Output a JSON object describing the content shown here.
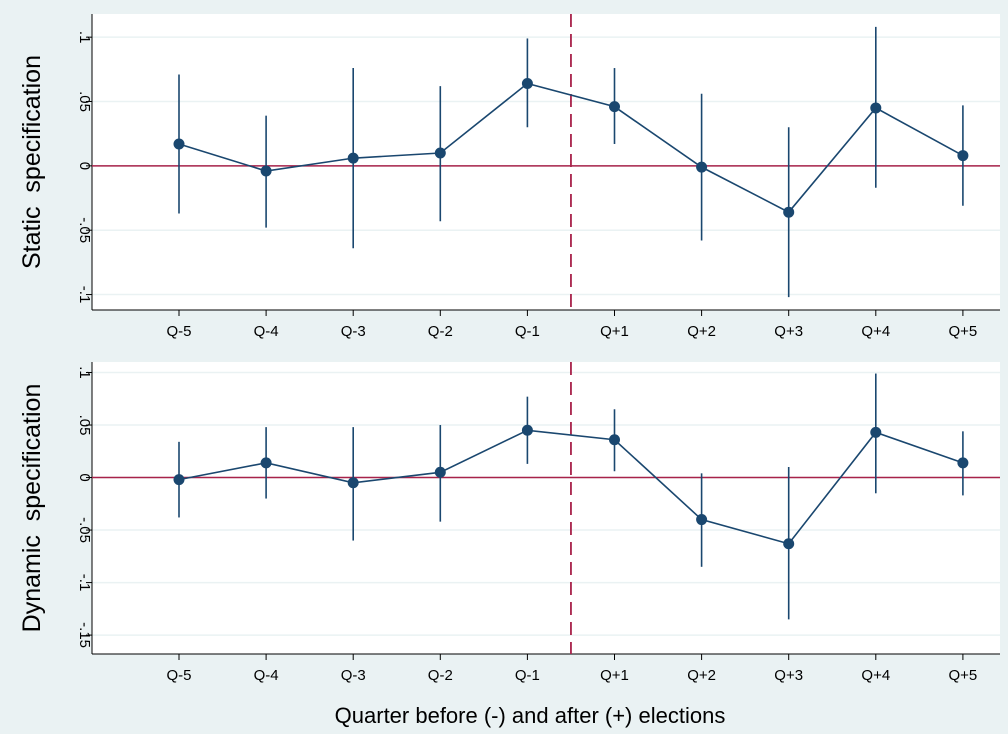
{
  "colors": {
    "outer_bg": "#eaf2f3",
    "plot_bg": "#ffffff",
    "grid": "#eaf2f3",
    "series": "#1a476f",
    "reference": "#a8224a",
    "axis": "#000000"
  },
  "chart_data": [
    {
      "type": "line",
      "ylabel": "Static  specification",
      "xlabel": "",
      "categories": [
        "Q-5",
        "Q-4",
        "Q-3",
        "Q-2",
        "Q-1",
        "Q+1",
        "Q+2",
        "Q+3",
        "Q+4",
        "Q+5"
      ],
      "yticks": [
        ".1",
        ".05",
        "0",
        "-.05",
        "-.1"
      ],
      "ylim": [
        -0.112,
        0.118
      ],
      "grid": true,
      "series": [
        {
          "values": [
            0.017,
            -0.004,
            0.006,
            0.01,
            0.064,
            0.046,
            -0.001,
            -0.036,
            0.045,
            0.008
          ],
          "ci_low": [
            -0.037,
            -0.048,
            -0.064,
            -0.043,
            0.03,
            0.017,
            -0.058,
            -0.102,
            -0.017,
            -0.031
          ],
          "ci_high": [
            0.071,
            0.039,
            0.076,
            0.062,
            0.099,
            0.076,
            0.056,
            0.03,
            0.108,
            0.047
          ]
        }
      ],
      "reference_lines": [
        {
          "axis": "y",
          "value": 0,
          "style": "solid"
        },
        {
          "axis": "x",
          "between": [
            "Q-1",
            "Q+1"
          ],
          "style": "dashed"
        }
      ]
    },
    {
      "type": "line",
      "ylabel": "Dynamic  specification",
      "xlabel": "Quarter before (-) and after (+) elections",
      "categories": [
        "Q-5",
        "Q-4",
        "Q-3",
        "Q-2",
        "Q-1",
        "Q+1",
        "Q+2",
        "Q+3",
        "Q+4",
        "Q+5"
      ],
      "yticks": [
        ".1",
        ".05",
        "0",
        "-.05",
        "-.1",
        "-.15"
      ],
      "ylim": [
        -0.168,
        0.11
      ],
      "grid": true,
      "series": [
        {
          "values": [
            -0.002,
            0.014,
            -0.005,
            0.005,
            0.045,
            0.036,
            -0.04,
            -0.063,
            0.043,
            0.014
          ],
          "ci_low": [
            -0.038,
            -0.02,
            -0.06,
            -0.042,
            0.013,
            0.006,
            -0.085,
            -0.135,
            -0.015,
            -0.017
          ],
          "ci_high": [
            0.034,
            0.048,
            0.048,
            0.05,
            0.077,
            0.065,
            0.004,
            0.01,
            0.099,
            0.044
          ]
        }
      ],
      "reference_lines": [
        {
          "axis": "y",
          "value": 0,
          "style": "solid"
        },
        {
          "axis": "x",
          "between": [
            "Q-1",
            "Q+1"
          ],
          "style": "dashed"
        }
      ]
    }
  ]
}
